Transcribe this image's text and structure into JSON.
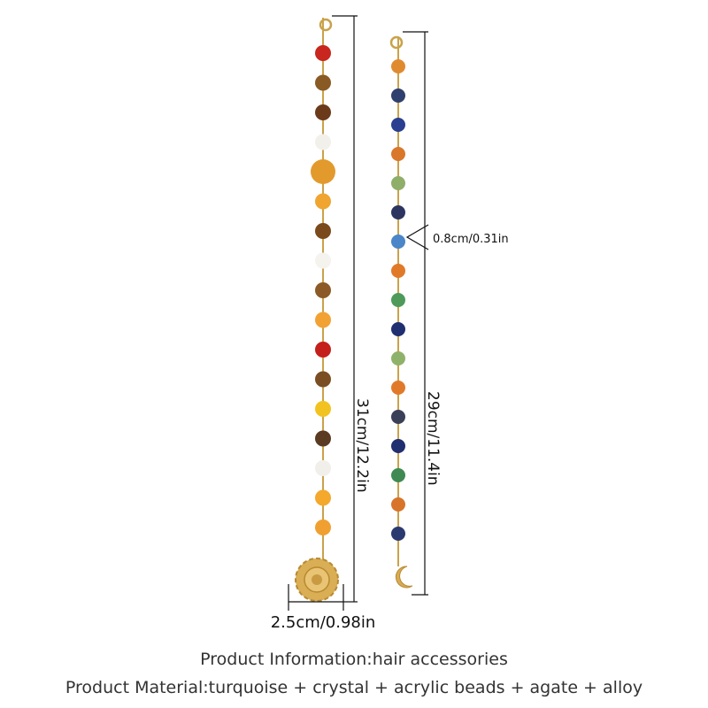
{
  "dimensions": {
    "left_length": "31cm/12.2in",
    "right_length": "29cm/11.4in",
    "bead_size": "0.8cm/0.31in",
    "charm_width": "2.5cm/0.98in"
  },
  "info": {
    "line1": "Product Information:hair accessories",
    "line2": "Product Material:turquoise + crystal + acrylic beads + agate + alloy"
  }
}
